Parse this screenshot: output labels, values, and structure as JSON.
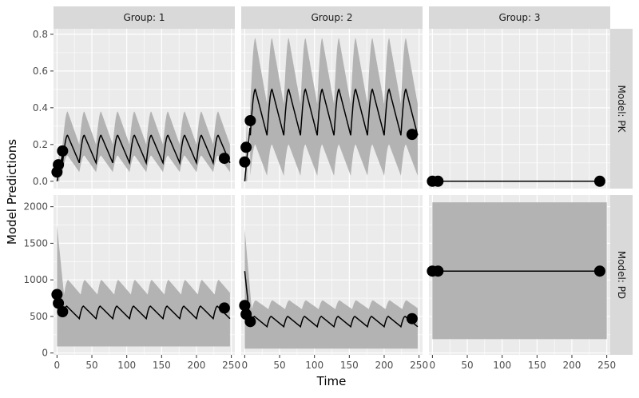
{
  "chart_data": {
    "type": "line",
    "facet_rows": [
      "Model: PK",
      "Model: PD"
    ],
    "facet_cols": [
      "Group: 1",
      "Group: 2",
      "Group: 3"
    ],
    "xlabel": "Time",
    "ylabel": "Model Predictions",
    "xlim": [
      -5,
      255
    ],
    "x_ticks": [
      0,
      50,
      100,
      150,
      200,
      250
    ],
    "rows": [
      {
        "name": "Model: PK",
        "ylim": [
          -0.04,
          0.83
        ],
        "y_ticks": [
          0.0,
          0.2,
          0.4,
          0.6,
          0.8
        ]
      },
      {
        "name": "Model: PD",
        "ylim": [
          -25,
          2160
        ],
        "y_ticks": [
          0,
          500,
          1000,
          1500,
          2000
        ]
      }
    ],
    "panels": [
      {
        "row": "Model: PK",
        "col": "Group: 1",
        "line": {
          "shape": "oscillating",
          "start": [
            0,
            0.0
          ],
          "rise_to": [
            8,
            0.15
          ],
          "period": 24,
          "peak": 0.25,
          "trough": 0.1,
          "end_x": 248
        },
        "band": {
          "upper_peak": 0.38,
          "upper_trough": 0.2,
          "lower_peak": 0.14,
          "lower_trough": 0.05
        },
        "points": [
          {
            "x": 0,
            "y": 0.05
          },
          {
            "x": 2,
            "y": 0.09
          },
          {
            "x": 8,
            "y": 0.165
          },
          {
            "x": 240,
            "y": 0.125
          }
        ]
      },
      {
        "row": "Model: PK",
        "col": "Group: 2",
        "line": {
          "shape": "oscillating",
          "start": [
            0,
            0.0
          ],
          "rise_to": [
            8,
            0.31
          ],
          "period": 24,
          "peak": 0.5,
          "trough": 0.25,
          "end_x": 248
        },
        "band": {
          "upper_peak": 0.78,
          "upper_trough": 0.42,
          "lower_peak": 0.2,
          "lower_trough": 0.03
        },
        "points": [
          {
            "x": 0,
            "y": 0.105
          },
          {
            "x": 2,
            "y": 0.185
          },
          {
            "x": 8,
            "y": 0.33
          },
          {
            "x": 240,
            "y": 0.255
          }
        ]
      },
      {
        "row": "Model: PK",
        "col": "Group: 3",
        "line": {
          "shape": "flat",
          "y": 0.0,
          "x_range": [
            0,
            240
          ]
        },
        "points": [
          {
            "x": 0,
            "y": 0.0
          },
          {
            "x": 8,
            "y": 0.0
          },
          {
            "x": 240,
            "y": 0.0
          }
        ]
      },
      {
        "row": "Model: PD",
        "col": "Group: 1",
        "line": {
          "shape": "decaying",
          "start": [
            0,
            800
          ],
          "trough_at": [
            8,
            550
          ],
          "period": 24,
          "peak": 640,
          "trough": 470,
          "end_x": 248
        },
        "band": {
          "start_high": 1750,
          "upper_peak": 1000,
          "upper_trough": 800,
          "lower": 90
        },
        "points": [
          {
            "x": 0,
            "y": 800
          },
          {
            "x": 2,
            "y": 680
          },
          {
            "x": 8,
            "y": 565
          },
          {
            "x": 240,
            "y": 615
          }
        ]
      },
      {
        "row": "Model: PD",
        "col": "Group: 2",
        "line": {
          "shape": "decaying",
          "start": [
            0,
            1120
          ],
          "trough_at": [
            8,
            410
          ],
          "period": 24,
          "peak": 500,
          "trough": 360,
          "end_x": 248
        },
        "band": {
          "start_high": 1700,
          "upper_peak": 720,
          "upper_trough": 600,
          "lower": 60
        },
        "points": [
          {
            "x": 0,
            "y": 650
          },
          {
            "x": 2,
            "y": 530
          },
          {
            "x": 8,
            "y": 430
          },
          {
            "x": 240,
            "y": 470
          }
        ]
      },
      {
        "row": "Model: PD",
        "col": "Group: 3",
        "line": {
          "shape": "flat",
          "y": 1120,
          "x_range": [
            0,
            240
          ]
        },
        "band": {
          "flat_lower": 190,
          "flat_upper": 2060,
          "x_range": [
            0,
            250
          ]
        },
        "points": [
          {
            "x": 0,
            "y": 1120
          },
          {
            "x": 8,
            "y": 1120
          },
          {
            "x": 240,
            "y": 1120
          }
        ]
      }
    ],
    "colors": {
      "panel_bg": "#ebebeb",
      "grid": "#ffffff",
      "strip_bg": "#d9d9d9",
      "band": "#b3b3b3",
      "line": "#000000"
    }
  }
}
